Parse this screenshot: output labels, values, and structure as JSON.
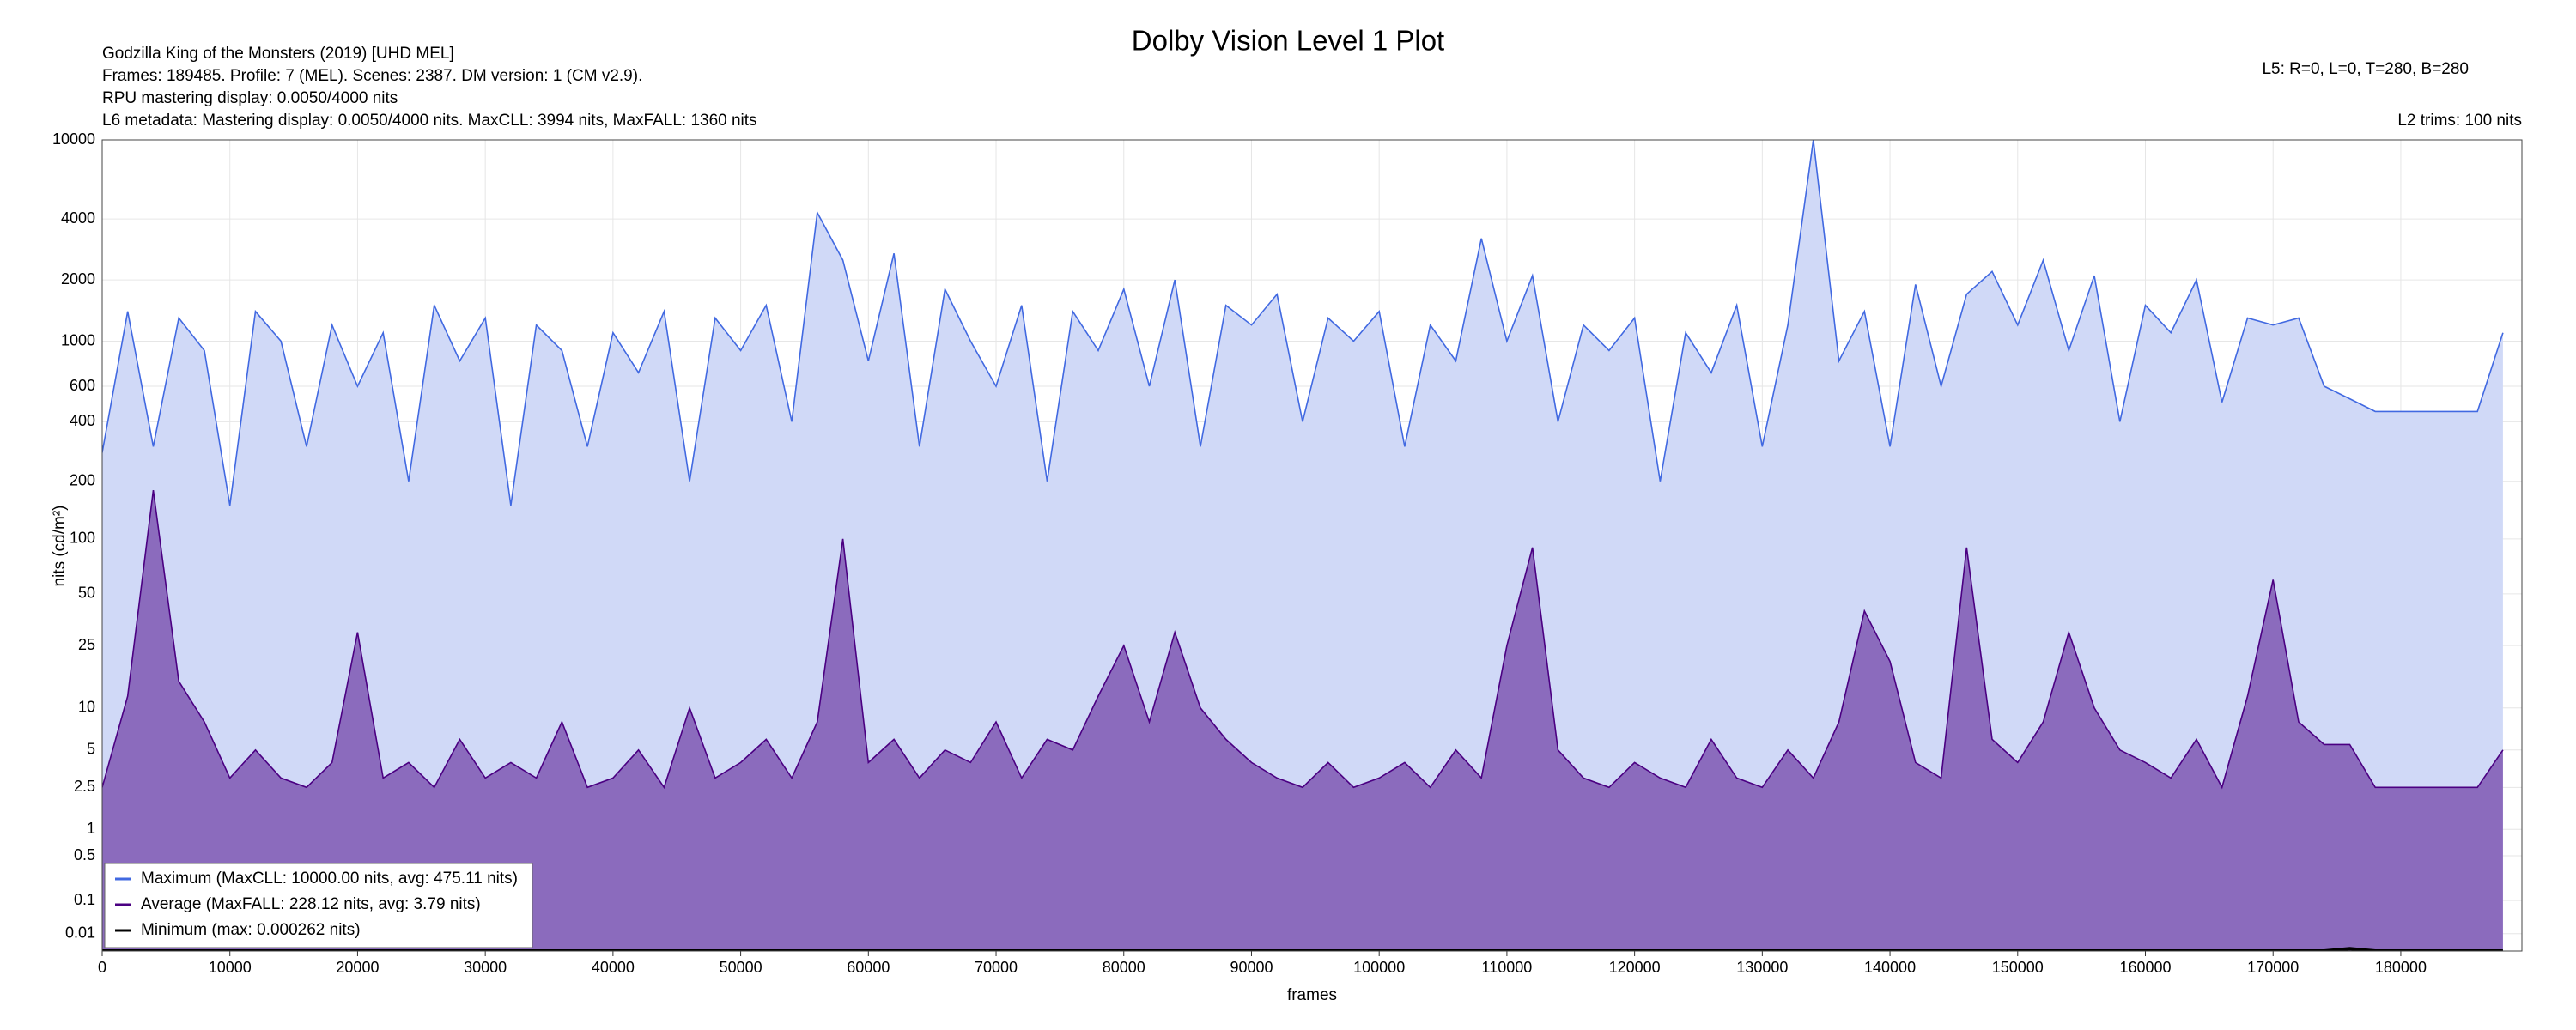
{
  "chart_data": {
    "type": "line",
    "title": "Dolby Vision Level 1 Plot",
    "info": [
      "Godzilla King of the Monsters (2019) [UHD MEL]",
      "Frames: 189485. Profile: 7 (MEL). Scenes: 2387. DM version: 1 (CM v2.9).",
      "RPU mastering display: 0.0050/4000 nits",
      "L6 metadata: Mastering display: 0.0050/4000 nits. MaxCLL: 3994 nits, MaxFALL: 1360 nits"
    ],
    "info_right": [
      "L5: R=0, L=0, T=280, B=280",
      "L2 trims: 100 nits"
    ],
    "xlabel": "frames",
    "ylabel": "nits (cd/m²)",
    "yscale": "pq",
    "grid": true,
    "legend": "lower left",
    "xlim": [
      0,
      189485
    ],
    "xticks": [
      0,
      10000,
      20000,
      30000,
      40000,
      50000,
      60000,
      70000,
      80000,
      90000,
      100000,
      110000,
      120000,
      130000,
      140000,
      150000,
      160000,
      170000,
      180000
    ],
    "ylim": [
      0,
      10000
    ],
    "yticks": [
      0.01,
      0.1,
      0.5,
      1,
      2.5,
      5,
      10,
      25,
      50,
      100,
      200,
      400,
      600,
      1000,
      2000,
      4000,
      10000
    ],
    "x": [
      0,
      2000,
      4000,
      6000,
      8000,
      10000,
      12000,
      14000,
      16000,
      18000,
      20000,
      22000,
      24000,
      26000,
      28000,
      30000,
      32000,
      34000,
      36000,
      38000,
      40000,
      42000,
      44000,
      46000,
      48000,
      50000,
      52000,
      54000,
      56000,
      58000,
      60000,
      62000,
      64000,
      66000,
      68000,
      70000,
      72000,
      74000,
      76000,
      78000,
      80000,
      82000,
      84000,
      86000,
      88000,
      90000,
      92000,
      94000,
      96000,
      98000,
      100000,
      102000,
      104000,
      106000,
      108000,
      110000,
      112000,
      114000,
      116000,
      118000,
      120000,
      122000,
      124000,
      126000,
      128000,
      130000,
      132000,
      134000,
      136000,
      138000,
      140000,
      142000,
      144000,
      146000,
      148000,
      150000,
      152000,
      154000,
      156000,
      158000,
      160000,
      162000,
      164000,
      166000,
      168000,
      170000,
      172000,
      174000,
      176000,
      178000,
      180000,
      182000,
      184000,
      186000,
      188000
    ],
    "series": [
      {
        "name": "Maximum (MaxCLL: 10000.00 nits, avg: 475.11 nits)",
        "color": "#4169e1",
        "fill": "#d0d9f7",
        "values": [
          280,
          1400,
          300,
          1300,
          900,
          150,
          1400,
          1000,
          300,
          1200,
          600,
          1100,
          200,
          1500,
          800,
          1300,
          150,
          1200,
          900,
          300,
          1100,
          700,
          1400,
          200,
          1300,
          900,
          1500,
          400,
          4300,
          2500,
          800,
          2700,
          300,
          1800,
          1000,
          600,
          1500,
          200,
          1400,
          900,
          1800,
          600,
          2000,
          300,
          1500,
          1200,
          1700,
          400,
          1300,
          1000,
          1400,
          300,
          1200,
          800,
          3200,
          1000,
          2100,
          400,
          1200,
          900,
          1300,
          200,
          1100,
          700,
          1500,
          300,
          1200,
          10000,
          800,
          1400,
          300,
          1900,
          600,
          1700,
          2200,
          1200,
          2500,
          900,
          2100,
          400,
          1500,
          1100,
          2000,
          500,
          1300,
          1200,
          1300,
          600,
          520,
          450,
          450,
          450,
          450,
          450,
          1100
        ]
      },
      {
        "name": "Average (MaxFALL: 228.12 nits, avg: 3.79 nits)",
        "color": "#4b0082",
        "fill": "#8b6bbd",
        "values": [
          2.5,
          12,
          180,
          15,
          8,
          3,
          5,
          3,
          2.5,
          4,
          30,
          3,
          4,
          2.5,
          6,
          3,
          4,
          3,
          8,
          2.5,
          3,
          5,
          2.5,
          10,
          3,
          4,
          6,
          3,
          8,
          100,
          4,
          6,
          3,
          5,
          4,
          8,
          3,
          6,
          5,
          12,
          25,
          8,
          30,
          10,
          6,
          4,
          3,
          2.5,
          4,
          2.5,
          3,
          4,
          2.5,
          5,
          3,
          25,
          90,
          5,
          3,
          2.5,
          4,
          3,
          2.5,
          6,
          3,
          2.5,
          5,
          3,
          8,
          40,
          20,
          4,
          3,
          90,
          6,
          4,
          8,
          30,
          10,
          5,
          4,
          3,
          6,
          2.5,
          12,
          60,
          8,
          5.5,
          5.5,
          2.5,
          2.5,
          2.5,
          2.5,
          2.5,
          5
        ]
      },
      {
        "name": "Minimum (max: 0.000262 nits)",
        "color": "#000000",
        "values": [
          0,
          0,
          0,
          0,
          0,
          0,
          0,
          0,
          0,
          0,
          0,
          0,
          0,
          0,
          0,
          0,
          0,
          0,
          0,
          0,
          0,
          0,
          0,
          0,
          0,
          0,
          0,
          0,
          0,
          0,
          0,
          0,
          0,
          0,
          0,
          0,
          0,
          0,
          0,
          0,
          0,
          0,
          0,
          0,
          0,
          0,
          0,
          0,
          0,
          0,
          0,
          0,
          0,
          0,
          0,
          0,
          0,
          0,
          0,
          0,
          0,
          0,
          0,
          0,
          0,
          0,
          0,
          0,
          0,
          0,
          0,
          0,
          0,
          0,
          0,
          0,
          0,
          0,
          0,
          0,
          0,
          0,
          0,
          0,
          0,
          0,
          0,
          0,
          0.000262,
          0,
          0,
          0,
          0,
          0,
          0
        ]
      }
    ]
  }
}
